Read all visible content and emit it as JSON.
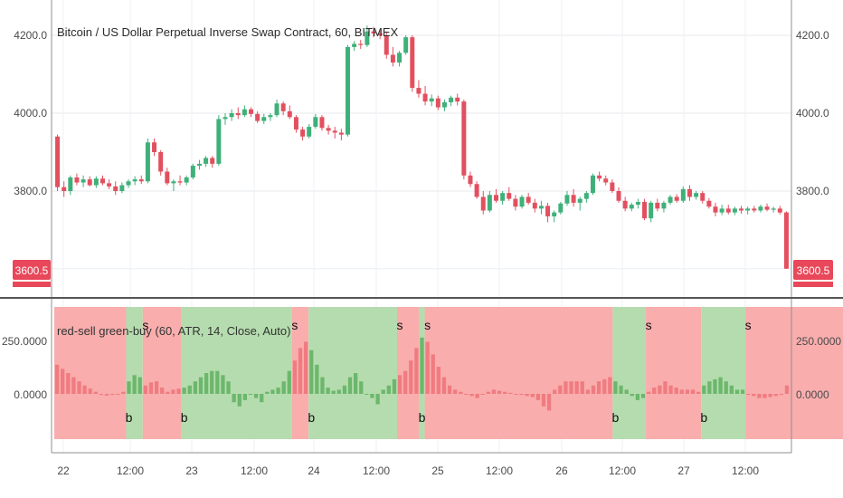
{
  "header": {
    "title": "Bitcoin / US Dollar Perpetual Inverse Swap Contract, 60, BITMEX"
  },
  "indicator": {
    "label": "red-sell green-buy (60, ATR, 14, Close, Auto)"
  },
  "price_axis": {
    "ticks": [
      "4200.0",
      "4000.0",
      "3800.0"
    ],
    "current_price": "3600.5"
  },
  "indicator_axis": {
    "ticks": [
      "250.0000",
      "0.0000"
    ]
  },
  "time_axis": {
    "ticks": [
      "22",
      "12:00",
      "23",
      "12:00",
      "24",
      "12:00",
      "25",
      "12:00",
      "26",
      "12:00",
      "27",
      "12:00"
    ]
  },
  "colors": {
    "up": "#3fb07a",
    "down": "#e2505f",
    "buy_zone": "#b5dcae",
    "sell_zone": "#f9adad",
    "hist_up": "#6cb76c",
    "hist_down": "#f07b80",
    "price_label": "#e8485a"
  },
  "chart_data": [
    {
      "type": "candlestick",
      "title": "Bitcoin / US Dollar Perpetual Inverse Swap Contract, 60, BITMEX",
      "yticks": [
        3800,
        4000,
        4200
      ],
      "current_price": 3600.5,
      "ohlc": [
        [
          3940,
          3945,
          3800,
          3810
        ],
        [
          3810,
          3825,
          3785,
          3800
        ],
        [
          3800,
          3840,
          3790,
          3835
        ],
        [
          3835,
          3845,
          3815,
          3822
        ],
        [
          3822,
          3840,
          3810,
          3830
        ],
        [
          3830,
          3838,
          3812,
          3815
        ],
        [
          3815,
          3838,
          3808,
          3832
        ],
        [
          3832,
          3840,
          3815,
          3820
        ],
        [
          3820,
          3830,
          3805,
          3812
        ],
        [
          3812,
          3825,
          3790,
          3800
        ],
        [
          3800,
          3822,
          3795,
          3815
        ],
        [
          3815,
          3830,
          3808,
          3825
        ],
        [
          3825,
          3838,
          3815,
          3830
        ],
        [
          3830,
          3840,
          3818,
          3825
        ],
        [
          3825,
          3935,
          3820,
          3925
        ],
        [
          3925,
          3935,
          3890,
          3900
        ],
        [
          3900,
          3905,
          3840,
          3850
        ],
        [
          3850,
          3860,
          3815,
          3820
        ],
        [
          3820,
          3830,
          3800,
          3825
        ],
        [
          3825,
          3840,
          3815,
          3822
        ],
        [
          3822,
          3840,
          3815,
          3835
        ],
        [
          3835,
          3870,
          3830,
          3865
        ],
        [
          3865,
          3880,
          3855,
          3870
        ],
        [
          3870,
          3890,
          3862,
          3885
        ],
        [
          3885,
          3890,
          3860,
          3870
        ],
        [
          3870,
          3995,
          3865,
          3985
        ],
        [
          3985,
          4000,
          3970,
          3990
        ],
        [
          3990,
          4010,
          3980,
          4000
        ],
        [
          4000,
          4015,
          3985,
          3995
        ],
        [
          3995,
          4020,
          3990,
          4010
        ],
        [
          4010,
          4015,
          3990,
          3998
        ],
        [
          3998,
          4005,
          3975,
          3980
        ],
        [
          3980,
          3998,
          3972,
          3990
        ],
        [
          3990,
          4000,
          3980,
          3995
        ],
        [
          3995,
          4035,
          3990,
          4025
        ],
        [
          4025,
          4030,
          3995,
          4005
        ],
        [
          4005,
          4020,
          3985,
          3990
        ],
        [
          3990,
          3995,
          3950,
          3958
        ],
        [
          3958,
          3965,
          3930,
          3940
        ],
        [
          3940,
          3972,
          3935,
          3965
        ],
        [
          3965,
          3998,
          3960,
          3990
        ],
        [
          3990,
          3995,
          3955,
          3962
        ],
        [
          3962,
          3970,
          3945,
          3955
        ],
        [
          3955,
          3965,
          3935,
          3950
        ],
        [
          3950,
          3960,
          3930,
          3945
        ],
        [
          3945,
          4175,
          3940,
          4170
        ],
        [
          4170,
          4185,
          4160,
          4178
        ],
        [
          4178,
          4188,
          4165,
          4175
        ],
        [
          4175,
          4225,
          4170,
          4210
        ],
        [
          4210,
          4222,
          4195,
          4205
        ],
        [
          4205,
          4215,
          4190,
          4200
        ],
        [
          4200,
          4210,
          4140,
          4150
        ],
        [
          4150,
          4170,
          4120,
          4130
        ],
        [
          4130,
          4160,
          4120,
          4155
        ],
        [
          4155,
          4200,
          4150,
          4195
        ],
        [
          4195,
          4200,
          4055,
          4065
        ],
        [
          4065,
          4085,
          4040,
          4050
        ],
        [
          4050,
          4070,
          4020,
          4030
        ],
        [
          4030,
          4048,
          4018,
          4038
        ],
        [
          4038,
          4045,
          4008,
          4015
        ],
        [
          4015,
          4035,
          4005,
          4028
        ],
        [
          4028,
          4045,
          4018,
          4040
        ],
        [
          4040,
          4050,
          4020,
          4030
        ],
        [
          4030,
          4035,
          3830,
          3840
        ],
        [
          3840,
          3850,
          3810,
          3818
        ],
        [
          3818,
          3825,
          3780,
          3785
        ],
        [
          3785,
          3800,
          3740,
          3750
        ],
        [
          3750,
          3800,
          3745,
          3790
        ],
        [
          3790,
          3805,
          3770,
          3775
        ],
        [
          3775,
          3800,
          3765,
          3795
        ],
        [
          3795,
          3810,
          3775,
          3780
        ],
        [
          3780,
          3790,
          3750,
          3760
        ],
        [
          3760,
          3790,
          3755,
          3785
        ],
        [
          3785,
          3795,
          3765,
          3770
        ],
        [
          3770,
          3780,
          3745,
          3755
        ],
        [
          3755,
          3775,
          3740,
          3762
        ],
        [
          3762,
          3770,
          3720,
          3735
        ],
        [
          3735,
          3750,
          3720,
          3745
        ],
        [
          3745,
          3772,
          3740,
          3768
        ],
        [
          3768,
          3800,
          3762,
          3790
        ],
        [
          3790,
          3805,
          3760,
          3770
        ],
        [
          3770,
          3785,
          3750,
          3780
        ],
        [
          3780,
          3800,
          3770,
          3795
        ],
        [
          3795,
          3845,
          3790,
          3840
        ],
        [
          3840,
          3850,
          3825,
          3832
        ],
        [
          3832,
          3840,
          3815,
          3822
        ],
        [
          3822,
          3830,
          3795,
          3800
        ],
        [
          3800,
          3810,
          3770,
          3775
        ],
        [
          3775,
          3785,
          3748,
          3755
        ],
        [
          3755,
          3770,
          3748,
          3765
        ],
        [
          3765,
          3780,
          3755,
          3772
        ],
        [
          3772,
          3780,
          3725,
          3730
        ],
        [
          3730,
          3775,
          3720,
          3770
        ],
        [
          3770,
          3780,
          3748,
          3755
        ],
        [
          3755,
          3775,
          3745,
          3770
        ],
        [
          3770,
          3790,
          3765,
          3785
        ],
        [
          3785,
          3792,
          3770,
          3775
        ],
        [
          3775,
          3812,
          3770,
          3805
        ],
        [
          3805,
          3815,
          3775,
          3785
        ],
        [
          3785,
          3800,
          3778,
          3795
        ],
        [
          3795,
          3800,
          3768,
          3775
        ],
        [
          3775,
          3782,
          3755,
          3760
        ],
        [
          3760,
          3770,
          3735,
          3745
        ],
        [
          3745,
          3765,
          3738,
          3755
        ],
        [
          3755,
          3765,
          3740,
          3745
        ],
        [
          3745,
          3760,
          3738,
          3755
        ],
        [
          3755,
          3762,
          3742,
          3750
        ],
        [
          3750,
          3760,
          3740,
          3755
        ],
        [
          3755,
          3762,
          3745,
          3750
        ],
        [
          3750,
          3765,
          3745,
          3760
        ],
        [
          3760,
          3768,
          3748,
          3752
        ],
        [
          3752,
          3760,
          3745,
          3755
        ],
        [
          3755,
          3762,
          3740,
          3745
        ],
        [
          3745,
          3748,
          3600,
          3600.5
        ]
      ]
    },
    {
      "type": "bar",
      "title": "red-sell green-buy (60, ATR, 14, Close, Auto)",
      "yticks": [
        0,
        250
      ],
      "values": [
        140,
        120,
        100,
        80,
        60,
        40,
        25,
        10,
        -5,
        -8,
        -5,
        0,
        10,
        60,
        90,
        80,
        40,
        55,
        60,
        30,
        10,
        20,
        25,
        30,
        40,
        60,
        80,
        100,
        110,
        110,
        90,
        60,
        -40,
        -60,
        -30,
        0,
        -20,
        -40,
        10,
        20,
        30,
        60,
        110,
        160,
        220,
        250,
        210,
        140,
        80,
        30,
        15,
        20,
        40,
        80,
        100,
        60,
        0,
        -20,
        -50,
        20,
        40,
        70,
        90,
        110,
        160,
        220,
        270,
        250,
        190,
        130,
        80,
        40,
        20,
        10,
        0,
        -10,
        -20,
        0,
        10,
        20,
        15,
        10,
        5,
        0,
        -5,
        -10,
        -15,
        -30,
        -60,
        -80,
        20,
        40,
        60,
        60,
        60,
        60,
        20,
        40,
        60,
        70,
        80,
        60,
        40,
        20,
        -10,
        -30,
        -20,
        10,
        30,
        40,
        60,
        40,
        30,
        20,
        20,
        20,
        10,
        40,
        60,
        70,
        80,
        60,
        40,
        20,
        20,
        0,
        -10,
        -20,
        -20,
        -15,
        -10,
        -5,
        40
      ],
      "zones": [
        {
          "type": "sell",
          "from": 0,
          "to": 13
        },
        {
          "type": "buy",
          "from": 13,
          "to": 16
        },
        {
          "type": "sell",
          "from": 16,
          "to": 23
        },
        {
          "type": "buy",
          "from": 23,
          "to": 43
        },
        {
          "type": "sell",
          "from": 43,
          "to": 46
        },
        {
          "type": "buy",
          "from": 46,
          "to": 62
        },
        {
          "type": "sell",
          "from": 62,
          "to": 66
        },
        {
          "type": "buy",
          "from": 66,
          "to": 67
        },
        {
          "type": "sell",
          "from": 67,
          "to": 101
        },
        {
          "type": "buy",
          "from": 101,
          "to": 107
        },
        {
          "type": "sell",
          "from": 107,
          "to": 117
        },
        {
          "type": "buy",
          "from": 117,
          "to": 125
        },
        {
          "type": "sell",
          "from": 125,
          "to": 144
        }
      ],
      "signals": [
        {
          "label": "b",
          "index": 13
        },
        {
          "label": "s",
          "index": 16
        },
        {
          "label": "b",
          "index": 23
        },
        {
          "label": "s",
          "index": 43
        },
        {
          "label": "b",
          "index": 46
        },
        {
          "label": "s",
          "index": 62
        },
        {
          "label": "b",
          "index": 66
        },
        {
          "label": "s",
          "index": 67
        },
        {
          "label": "b",
          "index": 101
        },
        {
          "label": "s",
          "index": 107
        },
        {
          "label": "b",
          "index": 117
        },
        {
          "label": "s",
          "index": 125
        }
      ]
    }
  ]
}
